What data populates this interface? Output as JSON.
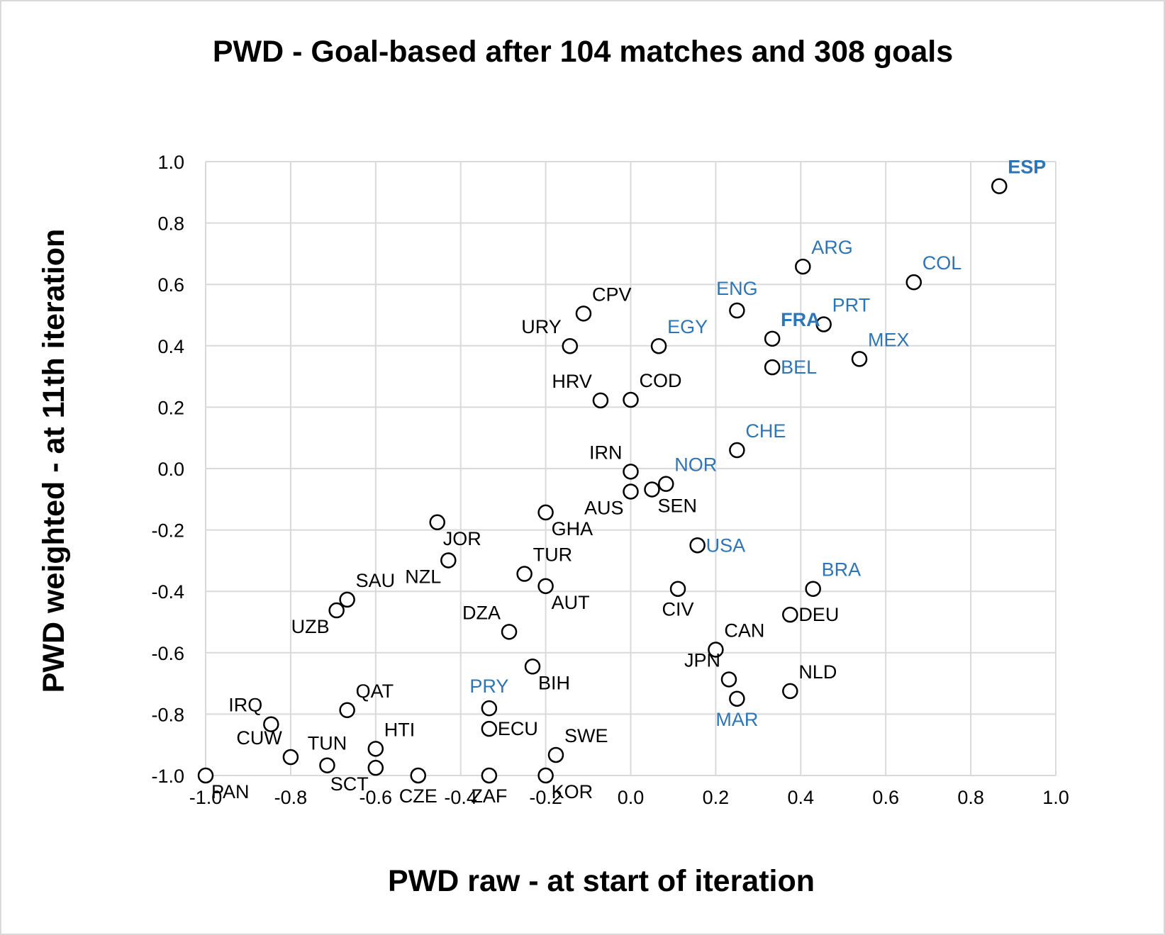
{
  "chart_data": {
    "type": "scatter",
    "title": "PWD - Goal-based after 104 matches and 308 goals",
    "xlabel": "PWD raw - at start of iteration",
    "ylabel": "PWD weighted - at 11th iteration",
    "xlim": [
      -1.0,
      1.0
    ],
    "ylim": [
      -1.0,
      1.0
    ],
    "x_ticks": [
      "-1.0",
      "-0.8",
      "-0.6",
      "-0.4",
      "-0.2",
      "0.0",
      "0.2",
      "0.4",
      "0.6",
      "0.8",
      "1.0"
    ],
    "y_ticks": [
      "-1.0",
      "-0.8",
      "-0.6",
      "-0.4",
      "-0.2",
      "0.0",
      "0.2",
      "0.4",
      "0.6",
      "0.8",
      "1.0"
    ],
    "grid": true,
    "colors": {
      "default_label": "#000000",
      "highlight_label": "#2e75b6",
      "marker_edge": "#000000",
      "grid": "#d9d9d9"
    },
    "points": [
      {
        "label": "ESP",
        "x": 0.867,
        "y": 0.92,
        "color": "#2e75b6",
        "bold": true,
        "pos": "ne"
      },
      {
        "label": "ARG",
        "x": 0.405,
        "y": 0.658,
        "color": "#2e75b6",
        "bold": false,
        "pos": "ne"
      },
      {
        "label": "COL",
        "x": 0.666,
        "y": 0.607,
        "color": "#2e75b6",
        "bold": false,
        "pos": "ne"
      },
      {
        "label": "ENG",
        "x": 0.25,
        "y": 0.515,
        "color": "#2e75b6",
        "bold": false,
        "pos": "n"
      },
      {
        "label": "PRT",
        "x": 0.454,
        "y": 0.47,
        "color": "#2e75b6",
        "bold": false,
        "pos": "ne"
      },
      {
        "label": "FRA",
        "x": 0.333,
        "y": 0.423,
        "color": "#2e75b6",
        "bold": true,
        "pos": "ne"
      },
      {
        "label": "EGY",
        "x": 0.066,
        "y": 0.399,
        "color": "#2e75b6",
        "bold": false,
        "pos": "ne"
      },
      {
        "label": "MEX",
        "x": 0.538,
        "y": 0.357,
        "color": "#2e75b6",
        "bold": false,
        "pos": "ne"
      },
      {
        "label": "BEL",
        "x": 0.333,
        "y": 0.33,
        "color": "#2e75b6",
        "bold": false,
        "pos": "e"
      },
      {
        "label": "CPV",
        "x": -0.111,
        "y": 0.505,
        "color": "#000000",
        "bold": false,
        "pos": "ne"
      },
      {
        "label": "URY",
        "x": -0.143,
        "y": 0.399,
        "color": "#000000",
        "bold": false,
        "pos": "nw"
      },
      {
        "label": "HRV",
        "x": -0.071,
        "y": 0.222,
        "color": "#000000",
        "bold": false,
        "pos": "nw"
      },
      {
        "label": "COD",
        "x": 0.0,
        "y": 0.224,
        "color": "#000000",
        "bold": false,
        "pos": "ne"
      },
      {
        "label": "CHE",
        "x": 0.25,
        "y": 0.06,
        "color": "#2e75b6",
        "bold": false,
        "pos": "ne"
      },
      {
        "label": "IRN",
        "x": 0.0,
        "y": -0.01,
        "color": "#000000",
        "bold": false,
        "pos": "nw"
      },
      {
        "label": "NOR",
        "x": 0.083,
        "y": -0.05,
        "color": "#2e75b6",
        "bold": false,
        "pos": "ne"
      },
      {
        "label": "AUS",
        "x": 0.0,
        "y": -0.075,
        "color": "#000000",
        "bold": false,
        "pos": "sw"
      },
      {
        "label": "SEN",
        "x": 0.05,
        "y": -0.068,
        "color": "#000000",
        "bold": false,
        "pos": "se"
      },
      {
        "label": "GHA",
        "x": -0.2,
        "y": -0.143,
        "color": "#000000",
        "bold": false,
        "pos": "se"
      },
      {
        "label": "JOR",
        "x": -0.455,
        "y": -0.175,
        "color": "#000000",
        "bold": false,
        "pos": "se"
      },
      {
        "label": "USA",
        "x": 0.157,
        "y": -0.25,
        "color": "#2e75b6",
        "bold": false,
        "pos": "e"
      },
      {
        "label": "NZL",
        "x": -0.429,
        "y": -0.299,
        "color": "#000000",
        "bold": false,
        "pos": "sw"
      },
      {
        "label": "TUR",
        "x": -0.25,
        "y": -0.343,
        "color": "#000000",
        "bold": false,
        "pos": "ne"
      },
      {
        "label": "AUT",
        "x": -0.2,
        "y": -0.383,
        "color": "#000000",
        "bold": false,
        "pos": "se"
      },
      {
        "label": "CIV",
        "x": 0.111,
        "y": -0.392,
        "color": "#000000",
        "bold": false,
        "pos": "s"
      },
      {
        "label": "BRA",
        "x": 0.429,
        "y": -0.392,
        "color": "#2e75b6",
        "bold": false,
        "pos": "ne"
      },
      {
        "label": "SAU",
        "x": -0.667,
        "y": -0.427,
        "color": "#000000",
        "bold": false,
        "pos": "ne"
      },
      {
        "label": "UZB",
        "x": -0.692,
        "y": -0.462,
        "color": "#000000",
        "bold": false,
        "pos": "sw"
      },
      {
        "label": "DEU",
        "x": 0.375,
        "y": -0.476,
        "color": "#000000",
        "bold": false,
        "pos": "e"
      },
      {
        "label": "DZA",
        "x": -0.286,
        "y": -0.532,
        "color": "#000000",
        "bold": false,
        "pos": "nw"
      },
      {
        "label": "CAN",
        "x": 0.2,
        "y": -0.59,
        "color": "#000000",
        "bold": false,
        "pos": "ne"
      },
      {
        "label": "BIH",
        "x": -0.231,
        "y": -0.645,
        "color": "#000000",
        "bold": false,
        "pos": "se"
      },
      {
        "label": "JPN",
        "x": 0.231,
        "y": -0.687,
        "color": "#000000",
        "bold": false,
        "pos": "nw"
      },
      {
        "label": "NLD",
        "x": 0.375,
        "y": -0.725,
        "color": "#000000",
        "bold": false,
        "pos": "ne"
      },
      {
        "label": "MAR",
        "x": 0.25,
        "y": -0.75,
        "color": "#2e75b6",
        "bold": false,
        "pos": "s"
      },
      {
        "label": "PRY",
        "x": -0.333,
        "y": -0.781,
        "color": "#2e75b6",
        "bold": false,
        "pos": "n"
      },
      {
        "label": "QAT",
        "x": -0.667,
        "y": -0.787,
        "color": "#000000",
        "bold": false,
        "pos": "ne"
      },
      {
        "label": "IRQ",
        "x": -0.846,
        "y": -0.833,
        "color": "#000000",
        "bold": false,
        "pos": "nw"
      },
      {
        "label": "ECU",
        "x": -0.333,
        "y": -0.848,
        "color": "#000000",
        "bold": false,
        "pos": "e"
      },
      {
        "label": "HTI",
        "x": -0.6,
        "y": -0.913,
        "color": "#000000",
        "bold": false,
        "pos": "ne"
      },
      {
        "label": "SWE",
        "x": -0.176,
        "y": -0.933,
        "color": "#000000",
        "bold": false,
        "pos": "ne"
      },
      {
        "label": "CUW",
        "x": -0.8,
        "y": -0.94,
        "color": "#000000",
        "bold": false,
        "pos": "nw"
      },
      {
        "label": "TUN",
        "x": -0.714,
        "y": -0.967,
        "color": "#000000",
        "bold": false,
        "pos": "n"
      },
      {
        "label": "SCT",
        "x": -0.6,
        "y": -0.975,
        "color": "#000000",
        "bold": false,
        "pos": "sw"
      },
      {
        "label": "PAN",
        "x": -1.0,
        "y": -1.0,
        "color": "#000000",
        "bold": false,
        "pos": "se"
      },
      {
        "label": "CZE",
        "x": -0.5,
        "y": -1.0,
        "color": "#000000",
        "bold": false,
        "pos": "s"
      },
      {
        "label": "ZAF",
        "x": -0.333,
        "y": -1.0,
        "color": "#000000",
        "bold": false,
        "pos": "s"
      },
      {
        "label": "KOR",
        "x": -0.2,
        "y": -1.0,
        "color": "#000000",
        "bold": false,
        "pos": "se"
      }
    ]
  }
}
